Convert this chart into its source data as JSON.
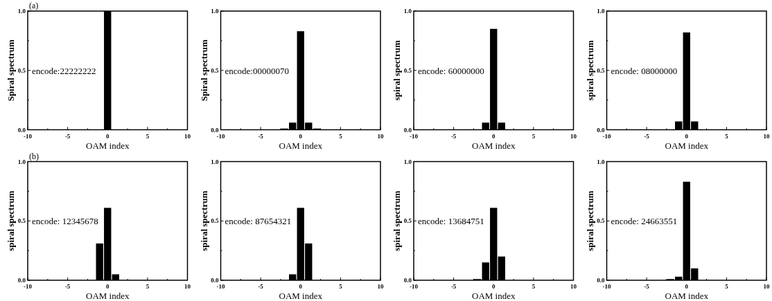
{
  "chart_data": [
    {
      "type": "bar",
      "title": "(a)",
      "xlabel": "OAM index",
      "ylabel": "Spiral spectrum",
      "annotations": [
        "encode:22222222"
      ],
      "x": [
        0
      ],
      "values": [
        1.0
      ],
      "color": "#000000",
      "xlim": [
        -10,
        10
      ],
      "xticks": [
        -10,
        {
          "value": -7.5,
          "label": null
        },
        -5,
        {
          "value": -2.5,
          "label": null
        },
        0,
        {
          "value": 2.5,
          "label": null
        },
        5,
        {
          "value": 7.5,
          "label": null
        },
        10
      ],
      "ylim": [
        0,
        1
      ],
      "yticks": [
        {
          "value": 0,
          "label": "0.0"
        },
        {
          "value": 0.25,
          "label": null
        },
        {
          "value": 0.5,
          "label": "0.5"
        },
        {
          "value": 0.75,
          "label": null
        },
        {
          "value": 1,
          "label": "1.0"
        }
      ]
    },
    {
      "type": "bar",
      "xlabel": "OAM index",
      "ylabel": "Spiral spectrum",
      "annotations": [
        "encode:00000070"
      ],
      "x": [
        -2,
        -1,
        0,
        1,
        2
      ],
      "values": [
        0.01,
        0.06,
        0.83,
        0.06,
        0.01
      ],
      "color": "#000000",
      "xlim": [
        -10,
        10
      ],
      "xticks": [
        -10,
        {
          "value": -7.5,
          "label": null
        },
        -5,
        {
          "value": -2.5,
          "label": null
        },
        0,
        {
          "value": 2.5,
          "label": null
        },
        5,
        {
          "value": 7.5,
          "label": null
        },
        10
      ],
      "ylim": [
        0,
        1
      ],
      "yticks": [
        {
          "value": 0,
          "label": "0.0"
        },
        {
          "value": 0.25,
          "label": null
        },
        {
          "value": 0.5,
          "label": "0.5"
        },
        {
          "value": 0.75,
          "label": null
        },
        {
          "value": 1,
          "label": "1.0"
        }
      ]
    },
    {
      "type": "bar",
      "xlabel": "OAM index",
      "ylabel": "spiral spectrum",
      "annotations": [
        "encode: 60000000"
      ],
      "x": [
        -1,
        0,
        1
      ],
      "values": [
        0.06,
        0.85,
        0.06
      ],
      "color": "#000000",
      "xlim": [
        -10,
        10
      ],
      "xticks": [
        -10,
        {
          "value": -7.5,
          "label": null
        },
        -5,
        {
          "value": -2.5,
          "label": null
        },
        0,
        {
          "value": 2.5,
          "label": null
        },
        5,
        {
          "value": 7.5,
          "label": null
        },
        10
      ],
      "ylim": [
        0,
        1
      ],
      "yticks": [
        {
          "value": 0,
          "label": "0.0"
        },
        {
          "value": 0.25,
          "label": null
        },
        {
          "value": 0.5,
          "label": "0.5"
        },
        {
          "value": 0.75,
          "label": null
        },
        {
          "value": 1,
          "label": "1.0"
        }
      ]
    },
    {
      "type": "bar",
      "xlabel": "OAM index",
      "ylabel": "spiral spectrum",
      "annotations": [
        "encode: 08000000"
      ],
      "x": [
        -1,
        0,
        1
      ],
      "values": [
        0.07,
        0.82,
        0.07
      ],
      "color": "#000000",
      "xlim": [
        -10,
        10
      ],
      "xticks": [
        -10,
        {
          "value": -7.5,
          "label": null
        },
        -5,
        {
          "value": -2.5,
          "label": null
        },
        0,
        {
          "value": 2.5,
          "label": null
        },
        5,
        {
          "value": 7.5,
          "label": null
        },
        10
      ],
      "ylim": [
        0,
        1
      ],
      "yticks": [
        {
          "value": 0,
          "label": "0.0"
        },
        {
          "value": 0.25,
          "label": null
        },
        {
          "value": 0.5,
          "label": "0.5"
        },
        {
          "value": 0.75,
          "label": null
        },
        {
          "value": 1,
          "label": "1.0"
        }
      ]
    },
    {
      "type": "bar",
      "title": "(b)",
      "xlabel": "OAM index",
      "ylabel": "spiral spectrum",
      "annotations": [
        "encode: 12345678"
      ],
      "x": [
        -1,
        0,
        1
      ],
      "values": [
        0.31,
        0.61,
        0.05
      ],
      "color": "#000000",
      "xlim": [
        -10,
        10
      ],
      "xticks": [
        -10,
        {
          "value": -7.5,
          "label": null
        },
        -5,
        {
          "value": -2.5,
          "label": null
        },
        0,
        {
          "value": 2.5,
          "label": null
        },
        5,
        {
          "value": 7.5,
          "label": null
        },
        10
      ],
      "ylim": [
        0,
        1
      ],
      "yticks": [
        {
          "value": 0,
          "label": "0.0"
        },
        {
          "value": 0.25,
          "label": null
        },
        {
          "value": 0.5,
          "label": "0.5"
        },
        {
          "value": 0.75,
          "label": null
        },
        {
          "value": 1,
          "label": "1.0"
        }
      ]
    },
    {
      "type": "bar",
      "xlabel": "OAM index",
      "ylabel": "spiral spectrum",
      "annotations": [
        "encode: 87654321"
      ],
      "x": [
        -1,
        0,
        1
      ],
      "values": [
        0.05,
        0.61,
        0.31
      ],
      "color": "#000000",
      "xlim": [
        -10,
        10
      ],
      "xticks": [
        -10,
        {
          "value": -7.5,
          "label": null
        },
        -5,
        {
          "value": -2.5,
          "label": null
        },
        0,
        {
          "value": 2.5,
          "label": null
        },
        5,
        {
          "value": 7.5,
          "label": null
        },
        10
      ],
      "ylim": [
        0,
        1
      ],
      "yticks": [
        {
          "value": 0,
          "label": "0.0"
        },
        {
          "value": 0.25,
          "label": null
        },
        {
          "value": 0.5,
          "label": "0.5"
        },
        {
          "value": 0.75,
          "label": null
        },
        {
          "value": 1,
          "label": "1.0"
        }
      ]
    },
    {
      "type": "bar",
      "xlabel": "OAM index",
      "ylabel": "spiral spectrum",
      "annotations": [
        "encode: 13684751"
      ],
      "x": [
        -2,
        -1,
        0,
        1
      ],
      "values": [
        0.01,
        0.15,
        0.61,
        0.2
      ],
      "color": "#000000",
      "xlim": [
        -10,
        10
      ],
      "xticks": [
        -10,
        {
          "value": -7.5,
          "label": null
        },
        -5,
        {
          "value": -2.5,
          "label": null
        },
        0,
        {
          "value": 2.5,
          "label": null
        },
        5,
        {
          "value": 7.5,
          "label": null
        },
        10
      ],
      "ylim": [
        0,
        1
      ],
      "yticks": [
        {
          "value": 0,
          "label": "0.0"
        },
        {
          "value": 0.25,
          "label": null
        },
        {
          "value": 0.5,
          "label": "0.5"
        },
        {
          "value": 0.75,
          "label": null
        },
        {
          "value": 1,
          "label": "1.0"
        }
      ]
    },
    {
      "type": "bar",
      "xlabel": "OAM index",
      "ylabel": "spiral spectrum",
      "annotations": [
        "encode: 24663551"
      ],
      "x": [
        -2,
        -1,
        0,
        1
      ],
      "values": [
        0.01,
        0.03,
        0.83,
        0.1
      ],
      "color": "#000000",
      "xlim": [
        -10,
        10
      ],
      "xticks": [
        -10,
        {
          "value": -7.5,
          "label": null
        },
        -5,
        {
          "value": -2.5,
          "label": null
        },
        0,
        {
          "value": 2.5,
          "label": null
        },
        5,
        {
          "value": 7.5,
          "label": null
        },
        10
      ],
      "ylim": [
        0,
        1
      ],
      "yticks": [
        {
          "value": 0,
          "label": "0.0"
        },
        {
          "value": 0.25,
          "label": null
        },
        {
          "value": 0.5,
          "label": "0.5"
        },
        {
          "value": 0.75,
          "label": null
        },
        {
          "value": 1,
          "label": "1.0"
        }
      ]
    }
  ]
}
